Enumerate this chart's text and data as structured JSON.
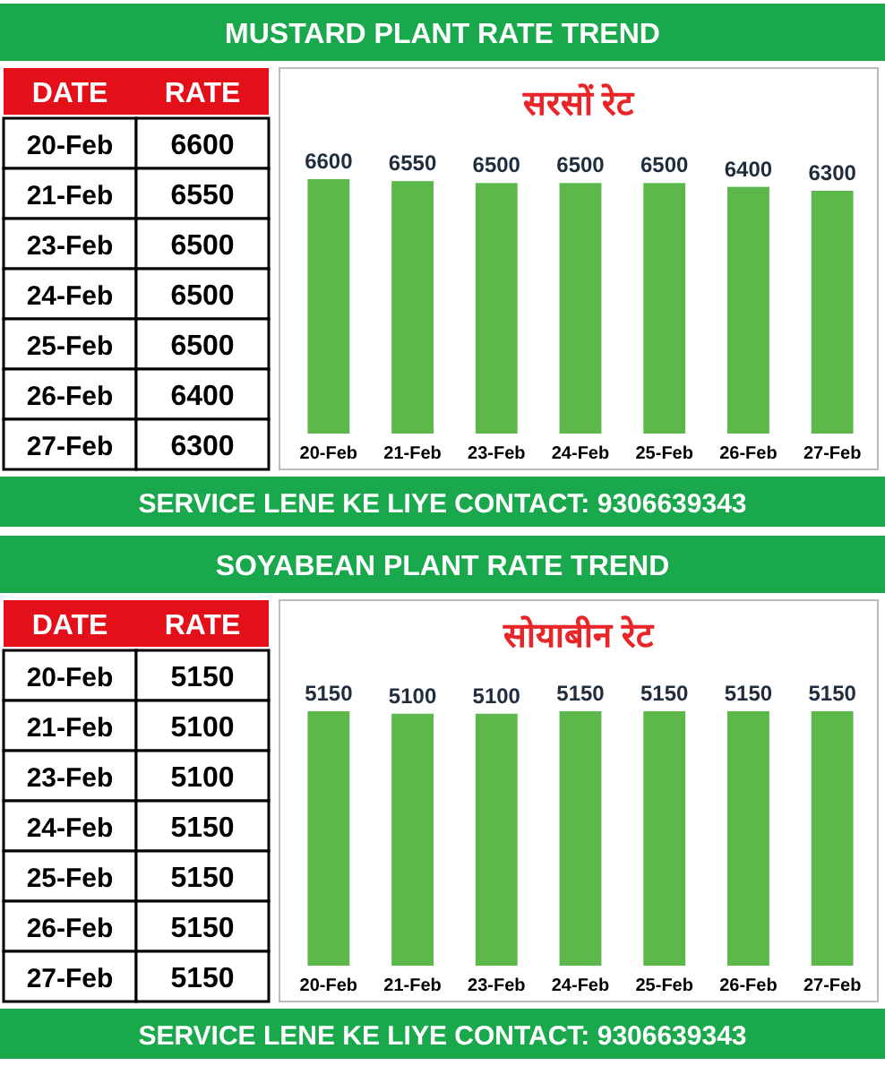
{
  "chart_data": [
    {
      "type": "other",
      "title": "MUSTARD PLANT RATE TREND",
      "categories": [
        "20-Feb",
        "21-Feb",
        "23-Feb",
        "24-Feb",
        "25-Feb",
        "26-Feb",
        "27-Feb"
      ],
      "values": [
        6600,
        6550,
        6500,
        6500,
        6500,
        6400,
        6300
      ],
      "data_labels": true,
      "annotations": [
        "DATE",
        "RATE",
        "SERVICE LENE KE LIYE CONTACT: 9306639343"
      ]
    },
    {
      "type": "bar",
      "title": "सरसों रेट",
      "categories": [
        "20-Feb",
        "21-Feb",
        "23-Feb",
        "24-Feb",
        "25-Feb",
        "26-Feb",
        "27-Feb"
      ],
      "values": [
        6600,
        6550,
        6500,
        6500,
        6500,
        6400,
        6300
      ],
      "color": "#5cb84a",
      "data_labels": true
    },
    {
      "type": "other",
      "title": "SOYABEAN PLANT RATE TREND",
      "categories": [
        "20-Feb",
        "21-Feb",
        "23-Feb",
        "24-Feb",
        "25-Feb",
        "26-Feb",
        "27-Feb"
      ],
      "values": [
        5150,
        5100,
        5100,
        5150,
        5150,
        5150,
        5150
      ],
      "data_labels": true,
      "annotations": [
        "DATE",
        "RATE",
        "SERVICE LENE KE LIYE CONTACT: 9306639343"
      ]
    },
    {
      "type": "bar",
      "title": "सोयाबीन रेट",
      "categories": [
        "20-Feb",
        "21-Feb",
        "23-Feb",
        "24-Feb",
        "25-Feb",
        "26-Feb",
        "27-Feb"
      ],
      "values": [
        5150,
        5100,
        5100,
        5150,
        5150,
        5150,
        5150
      ],
      "color": "#5cb84a",
      "data_labels": true
    }
  ]
}
